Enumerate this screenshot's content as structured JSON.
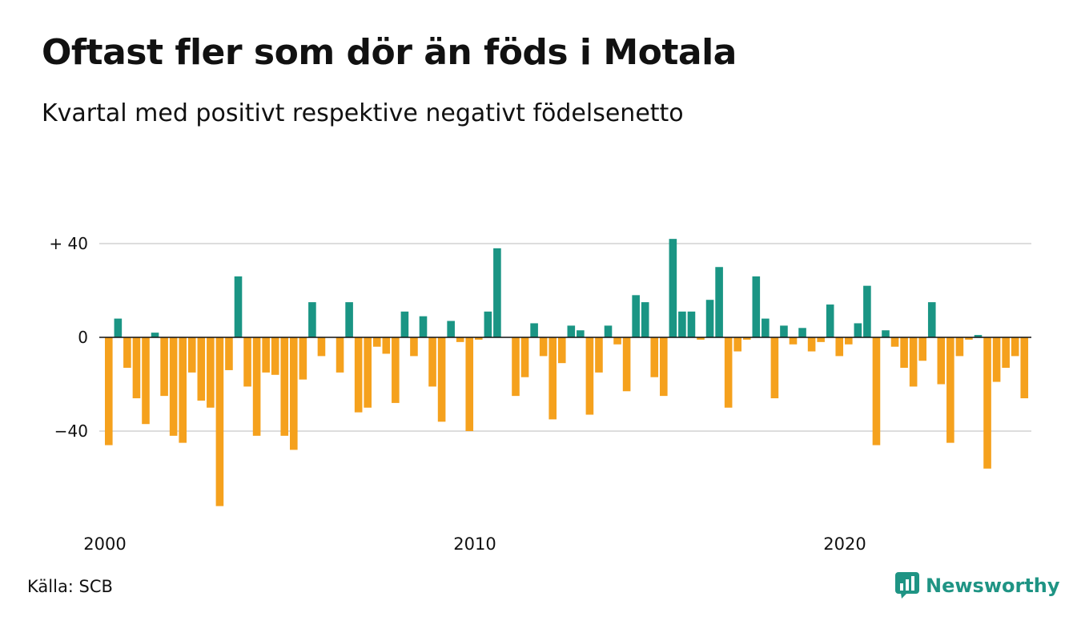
{
  "title": "Oftast fler som dör än föds i Motala",
  "subtitle": "Kvartal med positivt respektive negativt födelsenetto",
  "source": "Källa: SCB",
  "brand": {
    "name": "Newsworthy",
    "icon": "bar-chart-logo-icon"
  },
  "colors": {
    "positive": "#1a9584",
    "negative": "#f5a11d",
    "grid": "#dddddd",
    "brand": "#1f9484"
  },
  "chart_data": {
    "type": "bar",
    "x_tick_labels": [
      "2000",
      "2010",
      "2020"
    ],
    "y_tick_labels": [
      "+ 40",
      "0",
      "−40"
    ],
    "y_ticks": [
      40,
      0,
      -40
    ],
    "ylim": [
      -75,
      44
    ],
    "start": "2000 Q1",
    "grid": true,
    "values": [
      -46,
      8,
      -13,
      -26,
      -37,
      2,
      -25,
      -42,
      -45,
      -15,
      -27,
      -30,
      -72,
      -14,
      26,
      -21,
      -42,
      -15,
      -16,
      -42,
      -48,
      -18,
      15,
      -8,
      0,
      -15,
      15,
      -32,
      -30,
      -4,
      -7,
      -28,
      11,
      -8,
      9,
      -21,
      -36,
      7,
      -2,
      -40,
      -1,
      11,
      38,
      0,
      -25,
      -17,
      6,
      -8,
      -35,
      -11,
      5,
      3,
      -33,
      -15,
      5,
      -3,
      -23,
      18,
      15,
      -17,
      -25,
      42,
      11,
      11,
      -1,
      16,
      30,
      -30,
      -6,
      -1,
      26,
      8,
      -26,
      5,
      -3,
      4,
      -6,
      -2,
      14,
      -8,
      -3,
      6,
      22,
      -46,
      3,
      -4,
      -13,
      -21,
      -10,
      15,
      -20,
      -45,
      -8,
      -1,
      1,
      -56,
      -19,
      -13,
      -8,
      -26
    ]
  }
}
